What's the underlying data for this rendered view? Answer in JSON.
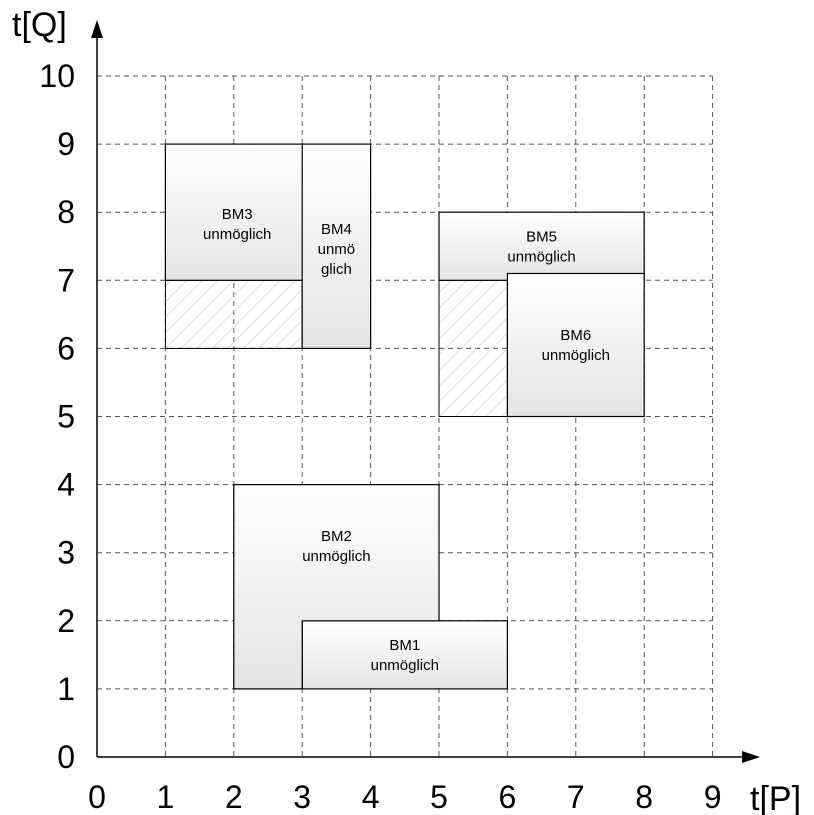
{
  "diagram": {
    "x_axis": {
      "title": "t[P]",
      "ticks": [
        "0",
        "1",
        "2",
        "3",
        "4",
        "5",
        "6",
        "7",
        "8",
        "9"
      ],
      "range": [
        0,
        9
      ]
    },
    "y_axis": {
      "title": "t[Q]",
      "ticks": [
        "0",
        "1",
        "2",
        "3",
        "4",
        "5",
        "6",
        "7",
        "8",
        "9",
        "10"
      ],
      "range": [
        0,
        10
      ]
    },
    "grid": "dashed",
    "regions": [
      {
        "id": "bm1",
        "lines": [
          "BM1",
          "unmöglich"
        ],
        "x": [
          3,
          6
        ],
        "y": [
          1,
          2
        ]
      },
      {
        "id": "bm2",
        "lines": [
          "BM2",
          "unmöglich"
        ],
        "polygon": [
          [
            2,
            1
          ],
          [
            3,
            1
          ],
          [
            3,
            2
          ],
          [
            5,
            2
          ],
          [
            5,
            4
          ],
          [
            2,
            4
          ]
        ]
      },
      {
        "id": "bm3",
        "lines": [
          "BM3",
          "unmöglich"
        ],
        "x": [
          1,
          3.1
        ],
        "y": [
          7,
          9
        ]
      },
      {
        "id": "bm4",
        "lines": [
          "BM4",
          "unmö",
          "glich"
        ],
        "x": [
          3,
          4
        ],
        "y": [
          6,
          9
        ]
      },
      {
        "id": "bm5",
        "lines": [
          "BM5",
          "unmöglich"
        ],
        "x": [
          5,
          8
        ],
        "y": [
          7,
          8
        ]
      },
      {
        "id": "bm6",
        "lines": [
          "BM6",
          "unmöglich"
        ],
        "x": [
          6,
          8
        ],
        "y": [
          5,
          7.1
        ]
      }
    ],
    "hatched_regions": [
      {
        "id": "hatch-a",
        "x": [
          1,
          3
        ],
        "y": [
          6,
          7
        ]
      },
      {
        "id": "hatch-b",
        "x": [
          5,
          6
        ],
        "y": [
          5,
          7
        ]
      }
    ],
    "colors": {
      "region_fill_top": "#ffffff",
      "region_fill_bottom": "#e4e4e4",
      "grid": "#555555",
      "hatch": "#d0d0d0"
    }
  }
}
